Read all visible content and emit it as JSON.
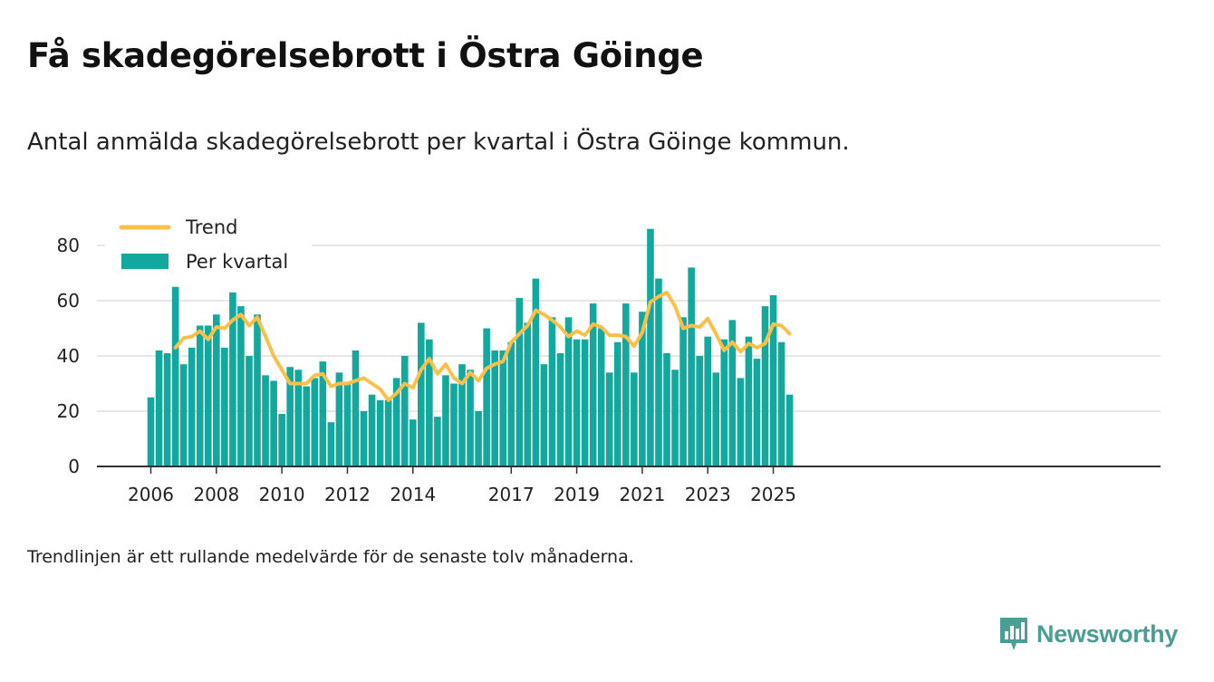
{
  "title": "Få skadegörelsebrott i Östra Göinge",
  "subtitle": "Antal anmälda skadegörelsebrott per kvartal i Östra Göinge kommun.",
  "footnote": "Trendlinjen är ett rullande medelvärde för de senaste tolv månaderna.",
  "brand": {
    "name": "Newsworthy",
    "icon": "newsworthy-logo-icon"
  },
  "colors": {
    "bar": "#13a89e",
    "trend": "#fbc04a",
    "grid": "#dddddd",
    "axis": "#333333"
  },
  "chart_data": {
    "type": "bar",
    "title": "Få skadegörelsebrott i Östra Göinge",
    "xlabel": "",
    "ylabel": "",
    "ylim": [
      0,
      90
    ],
    "yticks": [
      0,
      20,
      40,
      60,
      80
    ],
    "xtick_labels": [
      "2006",
      "2008",
      "2010",
      "2012",
      "2014",
      "2017",
      "2019",
      "2021",
      "2023",
      "2025"
    ],
    "legend": {
      "position": "top-left",
      "entries": [
        "Trend",
        "Per kvartal"
      ]
    },
    "start": {
      "year": 2006,
      "quarter": 1
    },
    "series": [
      {
        "name": "Per kvartal",
        "type": "bar",
        "values": [
          25,
          42,
          41,
          65,
          37,
          43,
          51,
          51,
          55,
          43,
          63,
          58,
          40,
          55,
          33,
          31,
          19,
          36,
          35,
          29,
          32,
          38,
          16,
          34,
          30,
          42,
          20,
          26,
          24,
          24,
          32,
          40,
          17,
          52,
          46,
          18,
          33,
          30,
          37,
          35,
          20,
          50,
          42,
          42,
          45,
          61,
          52,
          68,
          37,
          54,
          41,
          54,
          46,
          46,
          59,
          50,
          34,
          45,
          59,
          34,
          56,
          86,
          68,
          41,
          35,
          54,
          72,
          40,
          47,
          34,
          46,
          53,
          32,
          47,
          39,
          58,
          62,
          45,
          26
        ]
      },
      {
        "name": "Trend",
        "type": "line",
        "values": [
          null,
          null,
          null,
          43.0,
          46.5,
          47.0,
          49.0,
          46.0,
          50.5,
          50.0,
          53.0,
          55.0,
          51.0,
          54.0,
          47.0,
          40.0,
          35.0,
          30.0,
          30.0,
          30.0,
          33.0,
          33.5,
          29.0,
          30.0,
          30.0,
          31.0,
          32.0,
          30.0,
          28.0,
          24.0,
          26.5,
          30.0,
          28.5,
          35.0,
          39.0,
          33.5,
          37.0,
          32.0,
          30.0,
          34.0,
          31.0,
          35.5,
          37.0,
          38.0,
          45.0,
          48.0,
          51.0,
          56.5,
          55.0,
          53.0,
          50.5,
          47.0,
          49.0,
          47.5,
          51.5,
          50.5,
          47.5,
          47.5,
          47.0,
          43.5,
          48.5,
          59.5,
          61.5,
          63.0,
          58.0,
          50.0,
          51.0,
          50.5,
          53.5,
          48.0,
          42.0,
          45.0,
          41.5,
          44.5,
          43.0,
          44.5,
          51.5,
          51.0,
          48.0
        ]
      }
    ]
  }
}
